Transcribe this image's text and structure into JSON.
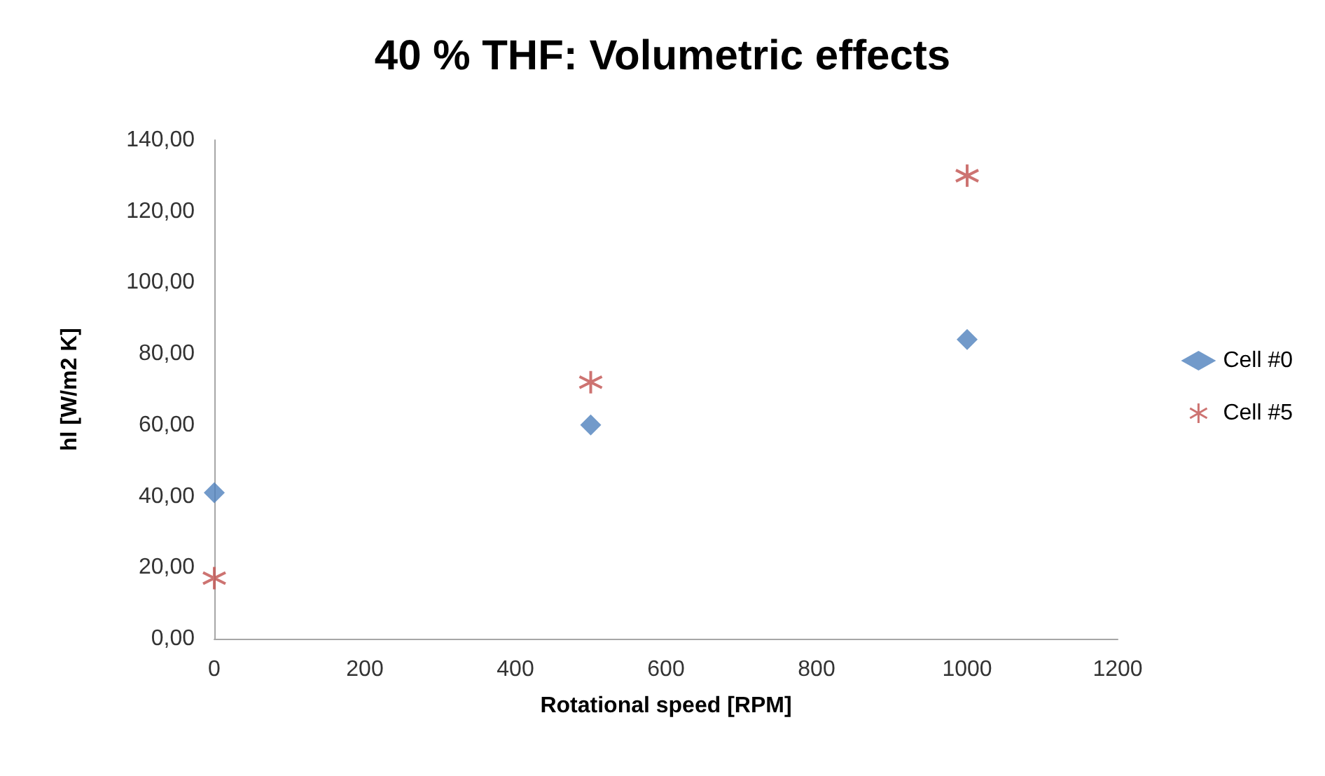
{
  "chart_data": {
    "type": "scatter",
    "title": "40 % THF: Volumetric effects",
    "xlabel": "Rotational speed [RPM]",
    "ylabel": "hl [W/m2 K]",
    "xlim": [
      0,
      1200
    ],
    "xticks": [
      0,
      200,
      400,
      600,
      800,
      1000,
      1200
    ],
    "ylim": [
      0,
      140
    ],
    "yticks": [
      {
        "value": 0,
        "label": "0,00"
      },
      {
        "value": 20,
        "label": "20,00"
      },
      {
        "value": 40,
        "label": "40,00"
      },
      {
        "value": 60,
        "label": "60,00"
      },
      {
        "value": 80,
        "label": "80,00"
      },
      {
        "value": 100,
        "label": "100,00"
      },
      {
        "value": 120,
        "label": "120,00"
      },
      {
        "value": 140,
        "label": "140,00"
      }
    ],
    "x": [
      0,
      500,
      1000
    ],
    "series": [
      {
        "name": "Cell #0",
        "color": "#4f81bd",
        "marker": "diamond",
        "values": [
          41,
          60,
          84
        ]
      },
      {
        "name": "Cell #5",
        "color": "#c0504d",
        "marker": "cross",
        "values": [
          17,
          72,
          130
        ]
      }
    ],
    "grid": false,
    "legend": "right"
  }
}
